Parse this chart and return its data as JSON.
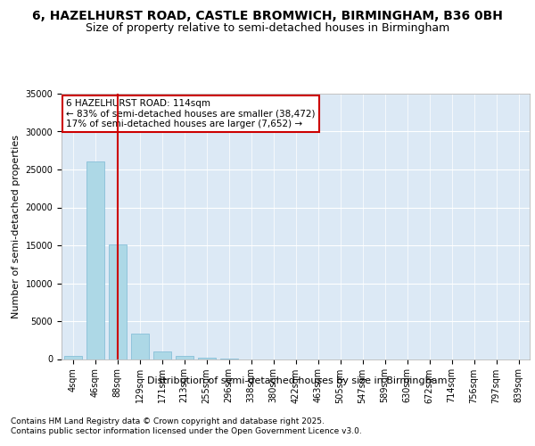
{
  "title_line1": "6, HAZELHURST ROAD, CASTLE BROMWICH, BIRMINGHAM, B36 0BH",
  "title_line2": "Size of property relative to semi-detached houses in Birmingham",
  "xlabel": "Distribution of semi-detached houses by size in Birmingham",
  "ylabel": "Number of semi-detached properties",
  "categories": [
    "4sqm",
    "46sqm",
    "88sqm",
    "129sqm",
    "171sqm",
    "213sqm",
    "255sqm",
    "296sqm",
    "338sqm",
    "380sqm",
    "422sqm",
    "463sqm",
    "505sqm",
    "547sqm",
    "589sqm",
    "630sqm",
    "672sqm",
    "714sqm",
    "756sqm",
    "797sqm",
    "839sqm"
  ],
  "values": [
    400,
    26100,
    15100,
    3350,
    1050,
    450,
    150,
    50,
    0,
    0,
    0,
    0,
    0,
    0,
    0,
    0,
    0,
    0,
    0,
    0,
    0
  ],
  "bar_color": "#add8e6",
  "bar_edgecolor": "#7bb8d4",
  "marker_label": "6 HAZELHURST ROAD: 114sqm",
  "annotation_line1": "← 83% of semi-detached houses are smaller (38,472)",
  "annotation_line2": "17% of semi-detached houses are larger (7,652) →",
  "annotation_box_color": "#ffffff",
  "annotation_box_edgecolor": "#cc0000",
  "vline_color": "#cc0000",
  "vline_x_index": 2,
  "ylim": [
    0,
    35000
  ],
  "yticks": [
    0,
    5000,
    10000,
    15000,
    20000,
    25000,
    30000,
    35000
  ],
  "ytick_labels": [
    "0",
    "5000",
    "10000",
    "15000",
    "20000",
    "25000",
    "30000",
    "35000"
  ],
  "plot_background": "#dce9f5",
  "grid_color": "#ffffff",
  "footer_line1": "Contains HM Land Registry data © Crown copyright and database right 2025.",
  "footer_line2": "Contains public sector information licensed under the Open Government Licence v3.0.",
  "title_fontsize": 10,
  "subtitle_fontsize": 9,
  "axis_label_fontsize": 8,
  "tick_fontsize": 7,
  "footer_fontsize": 6.5,
  "annot_fontsize": 7.5
}
